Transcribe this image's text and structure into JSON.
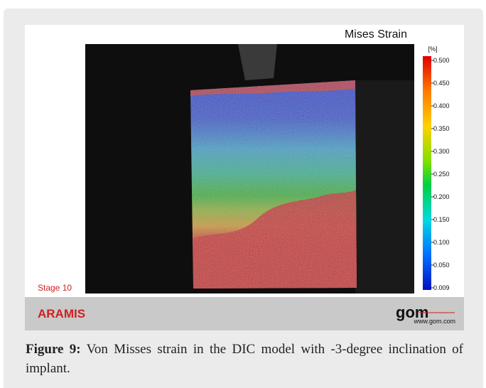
{
  "figure": {
    "title": "Mises Strain",
    "colorbar": {
      "unit": "[%]",
      "ticks": [
        "0.500",
        "0.450",
        "0.400",
        "0.350",
        "0.300",
        "0.250",
        "0.200",
        "0.150",
        "0.100",
        "0.050",
        "0.009"
      ]
    },
    "stage": "Stage 10",
    "footer": {
      "brand": "ARAMIS",
      "logo": "gom",
      "url": "www.gom.com"
    }
  },
  "caption": {
    "label": "Figure 9:",
    "text": "Von Misses strain in the DIC model with -3-degree inclination of implant."
  }
}
